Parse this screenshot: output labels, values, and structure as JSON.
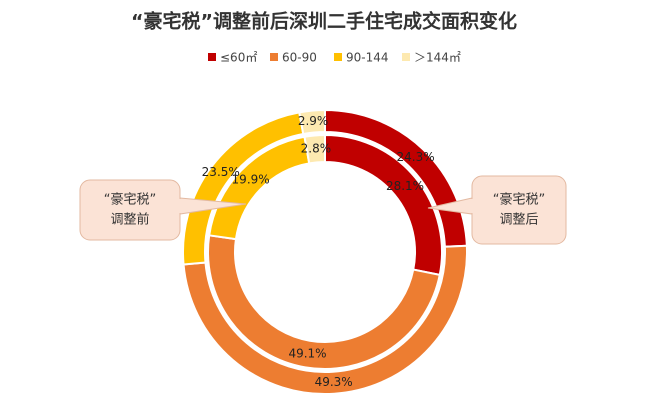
{
  "chart_data": {
    "type": "nested-donut",
    "title": "“豪宅税”调整前后深圳二手住宅成交面积变化",
    "categories": [
      "≤60㎡",
      "60-90",
      "90-144",
      "＞144㎡"
    ],
    "colors": [
      "#c00000",
      "#ed7d31",
      "#ffc000",
      "#fde9b0"
    ],
    "series": [
      {
        "name_lines": [
          "“豪宅税”",
          "调整后"
        ],
        "values": [
          24.3,
          49.3,
          23.5,
          2.9
        ],
        "value_labels": [
          "24.3%",
          "49.3%",
          "23.5%",
          "2.9%"
        ]
      },
      {
        "name_lines": [
          "“豪宅税”",
          "调整前"
        ],
        "values": [
          28.1,
          49.1,
          19.9,
          2.8
        ],
        "value_labels": [
          "28.1%",
          "49.1%",
          "19.9%",
          "2.8%"
        ]
      }
    ],
    "legend": "top"
  }
}
